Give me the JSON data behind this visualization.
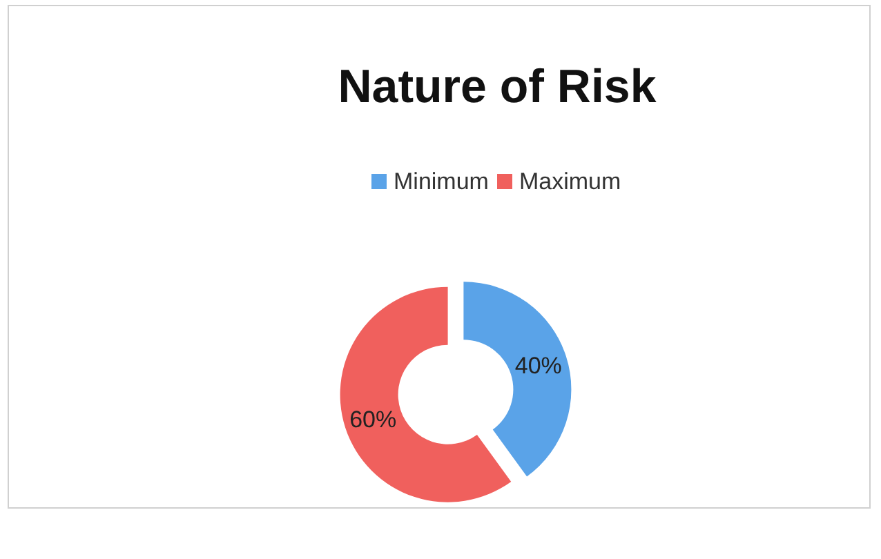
{
  "chart_data": {
    "type": "donut",
    "title": "Nature of Risk",
    "categories": [
      "Minimum",
      "Maximum"
    ],
    "values": [
      40,
      60
    ],
    "colors": [
      "#5aa3e8",
      "#f0605d"
    ],
    "legend": "top",
    "value_labels": [
      "40%",
      "60%"
    ]
  }
}
